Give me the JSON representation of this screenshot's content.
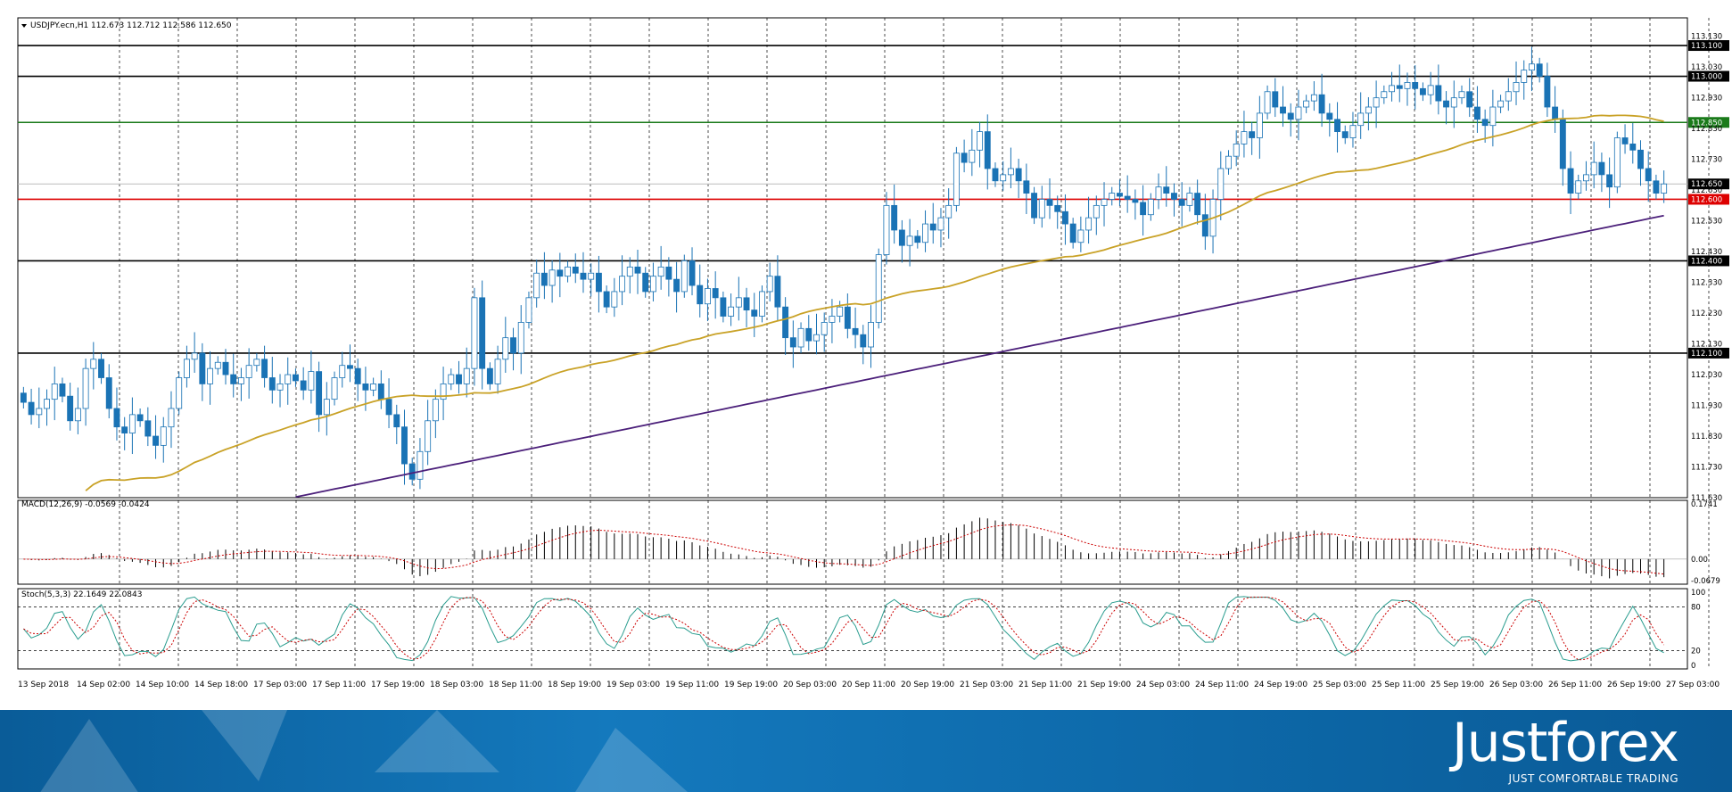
{
  "chart_data": [
    {
      "type": "candlestick",
      "title": "USDJPY.ecn,H1  112.673 112.712 112.586 112.650",
      "symbol": "USDJPY.ecn",
      "timeframe": "H1",
      "ohlc_current": {
        "open": 112.673,
        "high": 112.712,
        "low": 112.586,
        "close": 112.65
      },
      "ylim": [
        111.63,
        113.19
      ],
      "y_ticks": [
        113.13,
        113.03,
        112.93,
        112.83,
        112.73,
        112.63,
        112.53,
        112.43,
        112.33,
        112.23,
        112.13,
        112.03,
        111.93,
        111.83,
        111.73,
        111.63
      ],
      "horizontal_levels": [
        {
          "value": 113.1,
          "label": "113.100",
          "color": "#000000"
        },
        {
          "value": 113.0,
          "label": "113.000",
          "color": "#000000"
        },
        {
          "value": 112.85,
          "label": "112.850",
          "color": "#1a7a1a"
        },
        {
          "value": 112.6,
          "label": "112.600",
          "color": "#dd0000"
        },
        {
          "value": 112.4,
          "label": "112.400",
          "color": "#000000"
        },
        {
          "value": 112.1,
          "label": "112.100",
          "color": "#000000"
        }
      ],
      "current_price": {
        "value": 112.65,
        "label": "112.650"
      },
      "closes": [
        111.94,
        111.9,
        111.92,
        111.95,
        112.0,
        111.96,
        111.88,
        111.92,
        112.05,
        112.08,
        112.02,
        111.92,
        111.86,
        111.84,
        111.9,
        111.88,
        111.83,
        111.8,
        111.86,
        111.92,
        112.02,
        112.08,
        112.1,
        112.0,
        112.05,
        112.07,
        112.03,
        112.0,
        112.02,
        112.06,
        112.08,
        112.02,
        111.98,
        112.0,
        112.03,
        112.01,
        111.98,
        112.04,
        111.9,
        111.95,
        112.02,
        112.06,
        112.05,
        112.0,
        111.98,
        112.0,
        111.95,
        111.9,
        111.86,
        111.74,
        111.69,
        111.78,
        111.88,
        111.95,
        112.0,
        112.03,
        112.0,
        112.05,
        112.28,
        112.05,
        112.0,
        112.08,
        112.15,
        112.1,
        112.2,
        112.28,
        112.36,
        112.32,
        112.37,
        112.35,
        112.38,
        112.36,
        112.34,
        112.36,
        112.3,
        112.25,
        112.3,
        112.35,
        112.38,
        112.36,
        112.3,
        112.35,
        112.38,
        112.34,
        112.3,
        112.4,
        112.32,
        112.26,
        112.31,
        112.28,
        112.22,
        112.25,
        112.28,
        112.24,
        112.22,
        112.3,
        112.35,
        112.25,
        112.15,
        112.12,
        112.18,
        112.14,
        112.16,
        112.2,
        112.22,
        112.25,
        112.18,
        112.16,
        112.12,
        112.2,
        112.42,
        112.58,
        112.5,
        112.45,
        112.48,
        112.46,
        112.52,
        112.5,
        112.54,
        112.58,
        112.75,
        112.72,
        112.76,
        112.82,
        112.7,
        112.66,
        112.68,
        112.7,
        112.66,
        112.62,
        112.54,
        112.6,
        112.58,
        112.56,
        112.52,
        112.46,
        112.5,
        112.54,
        112.58,
        112.6,
        112.62,
        112.61,
        112.6,
        112.59,
        112.55,
        112.6,
        112.64,
        112.62,
        112.6,
        112.58,
        112.62,
        112.55,
        112.48,
        112.6,
        112.7,
        112.74,
        112.78,
        112.82,
        112.8,
        112.88,
        112.95,
        112.9,
        112.88,
        112.86,
        112.9,
        112.92,
        112.94,
        112.88,
        112.86,
        112.82,
        112.8,
        112.84,
        112.88,
        112.9,
        112.93,
        112.95,
        112.97,
        112.96,
        112.98,
        112.96,
        112.94,
        112.97,
        112.92,
        112.9,
        112.93,
        112.95,
        112.9,
        112.86,
        112.84,
        112.9,
        112.92,
        112.95,
        112.98,
        113.02,
        113.04,
        113.0,
        112.9,
        112.86,
        112.7,
        112.62,
        112.66,
        112.68,
        112.72,
        112.68,
        112.64,
        112.8,
        112.78,
        112.76,
        112.7,
        112.66,
        112.62,
        112.65
      ]
    },
    {
      "type": "histogram",
      "title": "MACD(12,26,9) -0.0569 -0.0424",
      "y_ticks": [
        0.1741,
        0.0,
        -0.0679
      ],
      "ylim": [
        -0.0679,
        0.1741
      ]
    },
    {
      "type": "line",
      "title": "Stoch(5,3,3) 22.1649 22.0843",
      "y_ticks": [
        100,
        80,
        20,
        0
      ],
      "ylim": [
        0,
        100
      ],
      "levels": [
        80,
        20
      ]
    }
  ],
  "x_ticks": [
    "13 Sep 2018",
    "14 Sep 02:00",
    "14 Sep 10:00",
    "14 Sep 18:00",
    "17 Sep 03:00",
    "17 Sep 11:00",
    "17 Sep 19:00",
    "18 Sep 03:00",
    "18 Sep 11:00",
    "18 Sep 19:00",
    "19 Sep 03:00",
    "19 Sep 11:00",
    "19 Sep 19:00",
    "20 Sep 03:00",
    "20 Sep 11:00",
    "20 Sep 19:00",
    "21 Sep 03:00",
    "21 Sep 11:00",
    "21 Sep 19:00",
    "24 Sep 03:00",
    "24 Sep 11:00",
    "24 Sep 19:00",
    "25 Sep 03:00",
    "25 Sep 11:00",
    "25 Sep 19:00",
    "26 Sep 03:00",
    "26 Sep 11:00",
    "26 Sep 19:00",
    "27 Sep 03:00"
  ],
  "colors": {
    "bull": "#ffffff",
    "bear": "#1a73b5",
    "candle_outline": "#1a73b5",
    "ma_fast": "#c9a227",
    "ma_slow": "#4b1f7a",
    "macd_signal": "#cc0000",
    "stoch_main": "#2a9d8f",
    "stoch_signal": "#cc0000"
  },
  "banner": {
    "logo": "Justforex",
    "tagline": "JUST COMFORTABLE TRADING"
  }
}
